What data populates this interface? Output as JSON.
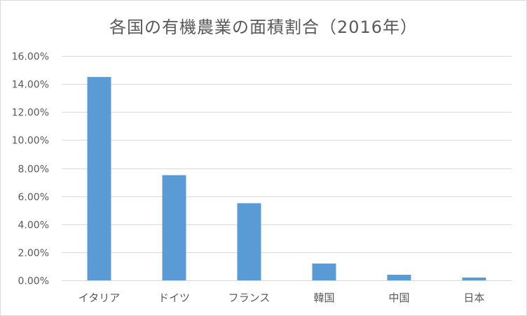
{
  "chart_data": {
    "type": "bar",
    "title": "各国の有機農業の面積割合（2016年）",
    "categories": [
      "イタリア",
      "ドイツ",
      "フランス",
      "韓国",
      "中国",
      "日本"
    ],
    "values": [
      14.5,
      7.5,
      5.5,
      1.2,
      0.4,
      0.2
    ],
    "value_unit": "%",
    "ylim": [
      0,
      16
    ],
    "yticks": [
      "0.00%",
      "2.00%",
      "4.00%",
      "6.00%",
      "8.00%",
      "10.00%",
      "12.00%",
      "14.00%",
      "16.00%"
    ],
    "xlabel": "",
    "ylabel": "",
    "grid": true,
    "legend": false,
    "bar_color": "#5b9bd5",
    "grid_color": "#d9d9d9",
    "text_color": "#595959"
  }
}
